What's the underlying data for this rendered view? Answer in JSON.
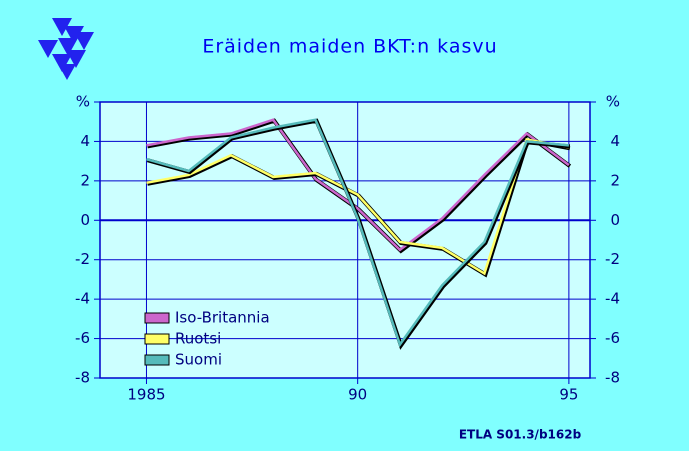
{
  "chart_data": {
    "type": "line",
    "title": "Eräiden maiden BKT:n kasvu",
    "source": "ETLA S01.3/b162b",
    "x": [
      1985,
      1986,
      1987,
      1988,
      1989,
      1990,
      1991,
      1992,
      1993,
      1994,
      1995
    ],
    "series": [
      {
        "name": "Iso-Britannia",
        "color": "#cc66cc",
        "values": [
          3.8,
          4.2,
          4.4,
          5.1,
          2.1,
          0.6,
          -1.5,
          0.1,
          2.3,
          4.4,
          2.8
        ]
      },
      {
        "name": "Ruotsi",
        "color": "#ffff66",
        "values": [
          1.9,
          2.3,
          3.3,
          2.2,
          2.4,
          1.3,
          -1.1,
          -1.4,
          -2.7,
          4.1,
          3.7
        ]
      },
      {
        "name": "Suomi",
        "color": "#55bbbb",
        "values": [
          3.1,
          2.5,
          4.2,
          4.7,
          5.1,
          0.1,
          -6.3,
          -3.3,
          -1.1,
          4.0,
          3.8
        ]
      }
    ],
    "xlim": [
      1983.9,
      1995.5
    ],
    "xticks": [
      1985,
      {
        "value": 1990,
        "label": "90"
      },
      {
        "value": 1995,
        "label": "95"
      }
    ],
    "ylim": [
      -8,
      6
    ],
    "yticks": [
      -8,
      -6,
      -4,
      -2,
      0,
      2,
      4,
      {
        "value": 6,
        "label": "%"
      }
    ],
    "grid": true,
    "legend": "lower-left"
  }
}
